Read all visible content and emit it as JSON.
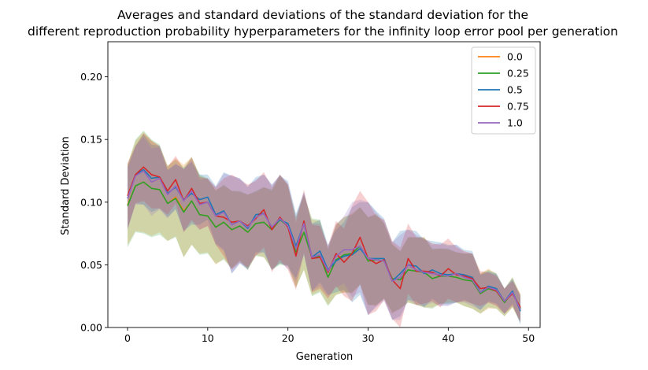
{
  "chart_data": {
    "type": "line",
    "title_line1": "Averages and standard deviations of the standard deviation for the",
    "title_line2": "different reproduction probability hyperparameters for the infinity loop error pool per generation",
    "xlabel": "Generation",
    "ylabel": "Standard Deviation",
    "xlim": [
      -2.45,
      51.45
    ],
    "ylim": [
      0.0,
      0.228
    ],
    "xticks": [
      0,
      10,
      20,
      30,
      40,
      50
    ],
    "yticks": [
      0.0,
      0.05,
      0.1,
      0.15,
      0.2
    ],
    "xtick_labels": [
      "0",
      "10",
      "20",
      "30",
      "40",
      "50"
    ],
    "ytick_labels": [
      "0.00",
      "0.05",
      "0.10",
      "0.15",
      "0.20"
    ],
    "legend_position": "top-right",
    "grid": false,
    "x": [
      0,
      1,
      2,
      3,
      4,
      5,
      6,
      7,
      8,
      9,
      10,
      11,
      12,
      13,
      14,
      15,
      16,
      17,
      18,
      19,
      20,
      21,
      22,
      23,
      24,
      25,
      26,
      27,
      28,
      29,
      30,
      31,
      32,
      33,
      34,
      35,
      36,
      37,
      38,
      39,
      40,
      41,
      42,
      43,
      44,
      45,
      46,
      47,
      48,
      49
    ],
    "series": [
      {
        "name": "0.0",
        "color": "#ff7f0e",
        "values": [
          0.098,
          0.113,
          0.116,
          0.111,
          0.11,
          0.099,
          0.104,
          0.093,
          0.101,
          0.09,
          0.089,
          0.08,
          0.084,
          0.078,
          0.081,
          0.076,
          0.083,
          0.084,
          0.078,
          0.086,
          0.082,
          0.06,
          0.076,
          0.056,
          0.057,
          0.04,
          0.054,
          0.058,
          0.059,
          0.065,
          0.053,
          0.054,
          0.053,
          0.039,
          0.038,
          0.046,
          0.045,
          0.044,
          0.039,
          0.041,
          0.041,
          0.04,
          0.038,
          0.037,
          0.027,
          0.031,
          0.029,
          0.02,
          0.028,
          0.015
        ],
        "std": [
          0.032,
          0.036,
          0.04,
          0.038,
          0.034,
          0.03,
          0.031,
          0.037,
          0.035,
          0.031,
          0.029,
          0.03,
          0.029,
          0.031,
          0.027,
          0.03,
          0.025,
          0.028,
          0.031,
          0.035,
          0.032,
          0.028,
          0.03,
          0.03,
          0.028,
          0.022,
          0.028,
          0.03,
          0.032,
          0.031,
          0.035,
          0.037,
          0.03,
          0.028,
          0.023,
          0.026,
          0.027,
          0.028,
          0.023,
          0.022,
          0.021,
          0.02,
          0.021,
          0.022,
          0.016,
          0.016,
          0.014,
          0.011,
          0.012,
          0.011
        ]
      },
      {
        "name": "0.25",
        "color": "#2ca02c",
        "values": [
          0.097,
          0.113,
          0.116,
          0.111,
          0.11,
          0.099,
          0.103,
          0.092,
          0.101,
          0.09,
          0.089,
          0.08,
          0.084,
          0.078,
          0.081,
          0.076,
          0.083,
          0.084,
          0.078,
          0.086,
          0.081,
          0.06,
          0.076,
          0.056,
          0.057,
          0.04,
          0.054,
          0.058,
          0.059,
          0.065,
          0.053,
          0.054,
          0.053,
          0.039,
          0.038,
          0.046,
          0.045,
          0.044,
          0.039,
          0.041,
          0.041,
          0.04,
          0.038,
          0.037,
          0.027,
          0.031,
          0.029,
          0.02,
          0.028,
          0.015
        ],
        "std": [
          0.033,
          0.037,
          0.041,
          0.039,
          0.036,
          0.03,
          0.031,
          0.036,
          0.035,
          0.032,
          0.03,
          0.029,
          0.03,
          0.031,
          0.028,
          0.03,
          0.026,
          0.028,
          0.032,
          0.036,
          0.032,
          0.028,
          0.03,
          0.031,
          0.029,
          0.023,
          0.028,
          0.03,
          0.031,
          0.031,
          0.035,
          0.036,
          0.03,
          0.027,
          0.023,
          0.026,
          0.027,
          0.028,
          0.024,
          0.022,
          0.022,
          0.02,
          0.021,
          0.022,
          0.016,
          0.015,
          0.014,
          0.011,
          0.012,
          0.011
        ]
      },
      {
        "name": "0.5",
        "color": "#1f77b4",
        "values": [
          0.103,
          0.122,
          0.126,
          0.119,
          0.12,
          0.107,
          0.112,
          0.102,
          0.107,
          0.102,
          0.104,
          0.09,
          0.093,
          0.082,
          0.085,
          0.079,
          0.09,
          0.091,
          0.08,
          0.086,
          0.083,
          0.065,
          0.083,
          0.056,
          0.061,
          0.046,
          0.053,
          0.057,
          0.058,
          0.063,
          0.055,
          0.055,
          0.055,
          0.037,
          0.043,
          0.05,
          0.049,
          0.043,
          0.046,
          0.043,
          0.042,
          0.043,
          0.042,
          0.04,
          0.028,
          0.033,
          0.031,
          0.021,
          0.029,
          0.013
        ],
        "std": [
          0.025,
          0.023,
          0.028,
          0.027,
          0.025,
          0.019,
          0.018,
          0.025,
          0.025,
          0.02,
          0.018,
          0.023,
          0.031,
          0.039,
          0.034,
          0.033,
          0.03,
          0.031,
          0.034,
          0.035,
          0.034,
          0.026,
          0.025,
          0.027,
          0.025,
          0.02,
          0.025,
          0.027,
          0.038,
          0.037,
          0.045,
          0.038,
          0.032,
          0.031,
          0.034,
          0.028,
          0.028,
          0.027,
          0.023,
          0.025,
          0.024,
          0.023,
          0.02,
          0.021,
          0.014,
          0.012,
          0.012,
          0.01,
          0.01,
          0.011
        ]
      },
      {
        "name": "0.75",
        "color": "#d62728",
        "values": [
          0.105,
          0.122,
          0.128,
          0.122,
          0.12,
          0.109,
          0.118,
          0.101,
          0.111,
          0.099,
          0.1,
          0.089,
          0.088,
          0.084,
          0.085,
          0.081,
          0.087,
          0.094,
          0.078,
          0.088,
          0.08,
          0.057,
          0.085,
          0.055,
          0.056,
          0.044,
          0.059,
          0.052,
          0.059,
          0.072,
          0.055,
          0.051,
          0.054,
          0.038,
          0.031,
          0.055,
          0.045,
          0.045,
          0.044,
          0.041,
          0.047,
          0.042,
          0.041,
          0.039,
          0.031,
          0.032,
          0.029,
          0.021,
          0.027,
          0.016
        ],
        "std": [
          0.026,
          0.023,
          0.027,
          0.027,
          0.025,
          0.019,
          0.019,
          0.025,
          0.025,
          0.021,
          0.019,
          0.023,
          0.031,
          0.038,
          0.033,
          0.033,
          0.03,
          0.03,
          0.034,
          0.034,
          0.034,
          0.027,
          0.025,
          0.027,
          0.025,
          0.021,
          0.026,
          0.027,
          0.038,
          0.037,
          0.045,
          0.038,
          0.032,
          0.031,
          0.033,
          0.028,
          0.027,
          0.026,
          0.023,
          0.025,
          0.024,
          0.022,
          0.02,
          0.02,
          0.014,
          0.012,
          0.012,
          0.01,
          0.01,
          0.011
        ]
      },
      {
        "name": "1.0",
        "color": "#9467bd",
        "values": [
          0.103,
          0.121,
          0.125,
          0.116,
          0.119,
          0.106,
          0.113,
          0.101,
          0.109,
          0.098,
          0.1,
          0.089,
          0.092,
          0.082,
          0.085,
          0.08,
          0.088,
          0.091,
          0.08,
          0.087,
          0.081,
          0.063,
          0.083,
          0.056,
          0.058,
          0.045,
          0.057,
          0.062,
          0.062,
          0.065,
          0.055,
          0.054,
          0.053,
          0.037,
          0.04,
          0.05,
          0.046,
          0.044,
          0.043,
          0.042,
          0.041,
          0.043,
          0.04,
          0.038,
          0.028,
          0.032,
          0.03,
          0.021,
          0.028,
          0.014
        ],
        "std": [
          0.025,
          0.023,
          0.027,
          0.027,
          0.025,
          0.019,
          0.018,
          0.025,
          0.025,
          0.02,
          0.019,
          0.023,
          0.031,
          0.039,
          0.034,
          0.033,
          0.03,
          0.031,
          0.034,
          0.035,
          0.034,
          0.026,
          0.025,
          0.027,
          0.025,
          0.02,
          0.025,
          0.027,
          0.038,
          0.037,
          0.045,
          0.038,
          0.032,
          0.031,
          0.034,
          0.028,
          0.028,
          0.027,
          0.023,
          0.025,
          0.024,
          0.023,
          0.02,
          0.021,
          0.014,
          0.012,
          0.012,
          0.01,
          0.01,
          0.011
        ]
      }
    ]
  }
}
